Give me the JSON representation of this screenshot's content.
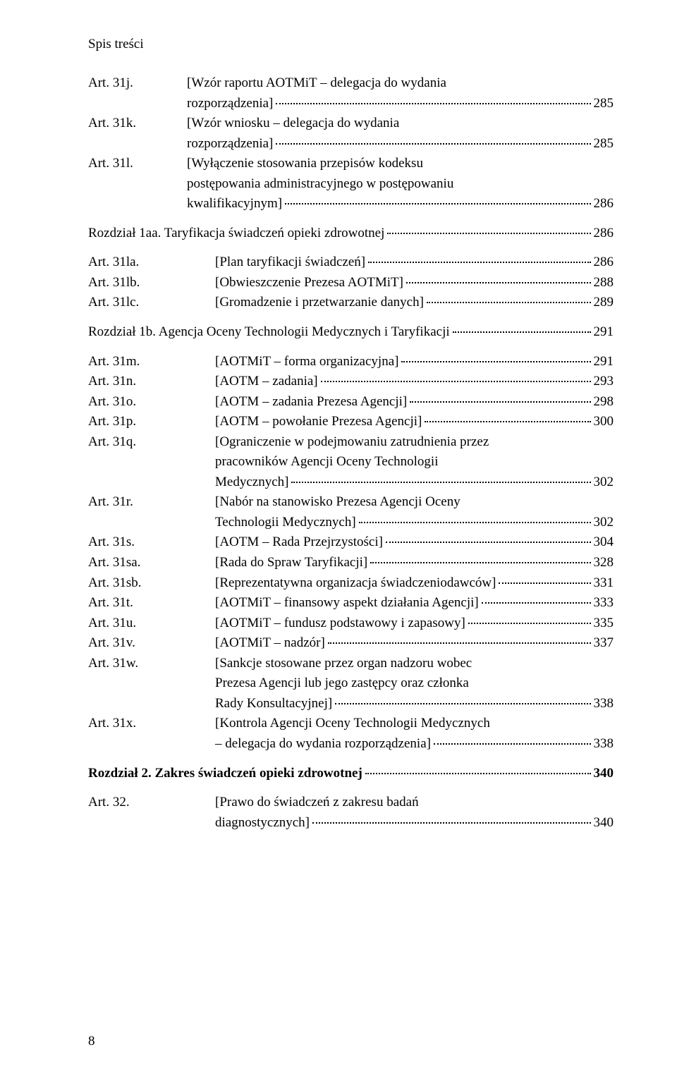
{
  "header": "Spis treści",
  "pageNumber": "8",
  "block1": [
    {
      "label": "Art. 31j.",
      "lines": [
        "[Wzór raportu AOTMiT – delegacja do wydania",
        "rozporządzenia]"
      ],
      "page": "285"
    },
    {
      "label": "Art. 31k.",
      "lines": [
        "[Wzór wniosku – delegacja do wydania",
        "rozporządzenia]"
      ],
      "page": "285"
    },
    {
      "label": "Art. 31l.",
      "lines": [
        "[Wyłączenie stosowania przepisów kodeksu",
        "postępowania administracyjnego w postępowaniu",
        "kwalifikacyjnym]"
      ],
      "page": "286"
    }
  ],
  "section1": {
    "text": "Rozdział 1aa. Taryfikacja świadczeń opieki zdrowotnej",
    "page": "286"
  },
  "block2": [
    {
      "label": "Art. 31la.",
      "lines": [
        "[Plan taryfikacji świadczeń]"
      ],
      "page": "286"
    },
    {
      "label": "Art. 31lb.",
      "lines": [
        "[Obwieszczenie Prezesa AOTMiT]"
      ],
      "page": "288"
    },
    {
      "label": "Art. 31lc.",
      "lines": [
        "[Gromadzenie i przetwarzanie danych]"
      ],
      "page": "289"
    }
  ],
  "section2": {
    "text": "Rozdział 1b. Agencja Oceny Technologii Medycznych i Taryfikacji",
    "page": "291"
  },
  "block3": [
    {
      "label": "Art. 31m.",
      "lines": [
        "[AOTMiT – forma organizacyjna]"
      ],
      "page": "291"
    },
    {
      "label": "Art. 31n.",
      "lines": [
        "[AOTM – zadania]"
      ],
      "page": "293"
    },
    {
      "label": "Art. 31o.",
      "lines": [
        "[AOTM – zadania Prezesa Agencji]"
      ],
      "page": "298"
    },
    {
      "label": "Art. 31p.",
      "lines": [
        "[AOTM – powołanie Prezesa Agencji]"
      ],
      "page": "300"
    },
    {
      "label": "Art. 31q.",
      "lines": [
        "[Ograniczenie w podejmowaniu zatrudnienia przez",
        "pracowników Agencji Oceny Technologii",
        "Medycznych]"
      ],
      "page": "302"
    },
    {
      "label": "Art. 31r.",
      "lines": [
        "[Nabór na stanowisko Prezesa Agencji Oceny",
        "Technologii Medycznych]"
      ],
      "page": "302"
    },
    {
      "label": "Art. 31s.",
      "lines": [
        "[AOTM – Rada Przejrzystości]"
      ],
      "page": "304"
    },
    {
      "label": "Art. 31sa.",
      "lines": [
        "[Rada do Spraw Taryfikacji]"
      ],
      "page": "328"
    },
    {
      "label": "Art. 31sb.",
      "lines": [
        "[Reprezentatywna organizacja świadczeniodawców]"
      ],
      "page": "331"
    },
    {
      "label": "Art. 31t.",
      "lines": [
        "[AOTMiT – finansowy aspekt działania Agencji]"
      ],
      "page": "333"
    },
    {
      "label": "Art. 31u.",
      "lines": [
        "[AOTMiT – fundusz podstawowy i zapasowy]"
      ],
      "page": "335"
    },
    {
      "label": "Art. 31v.",
      "lines": [
        "[AOTMiT – nadzór]"
      ],
      "page": "337"
    },
    {
      "label": "Art. 31w.",
      "lines": [
        "[Sankcje stosowane przez organ nadzoru wobec",
        "Prezesa Agencji lub jego zastępcy oraz członka",
        "Rady Konsultacyjnej]"
      ],
      "page": "338"
    },
    {
      "label": "Art. 31x.",
      "lines": [
        "[Kontrola Agencji Oceny Technologii Medycznych",
        "– delegacja do wydania rozporządzenia]"
      ],
      "page": "338"
    }
  ],
  "section3": {
    "text": "Rozdział 2. Zakres świadczeń opieki zdrowotnej",
    "page": "340",
    "bold": true
  },
  "block4": [
    {
      "label": "Art. 32.",
      "lines": [
        "[Prawo do świadczeń z zakresu badań",
        "diagnostycznych]"
      ],
      "page": "340"
    }
  ]
}
